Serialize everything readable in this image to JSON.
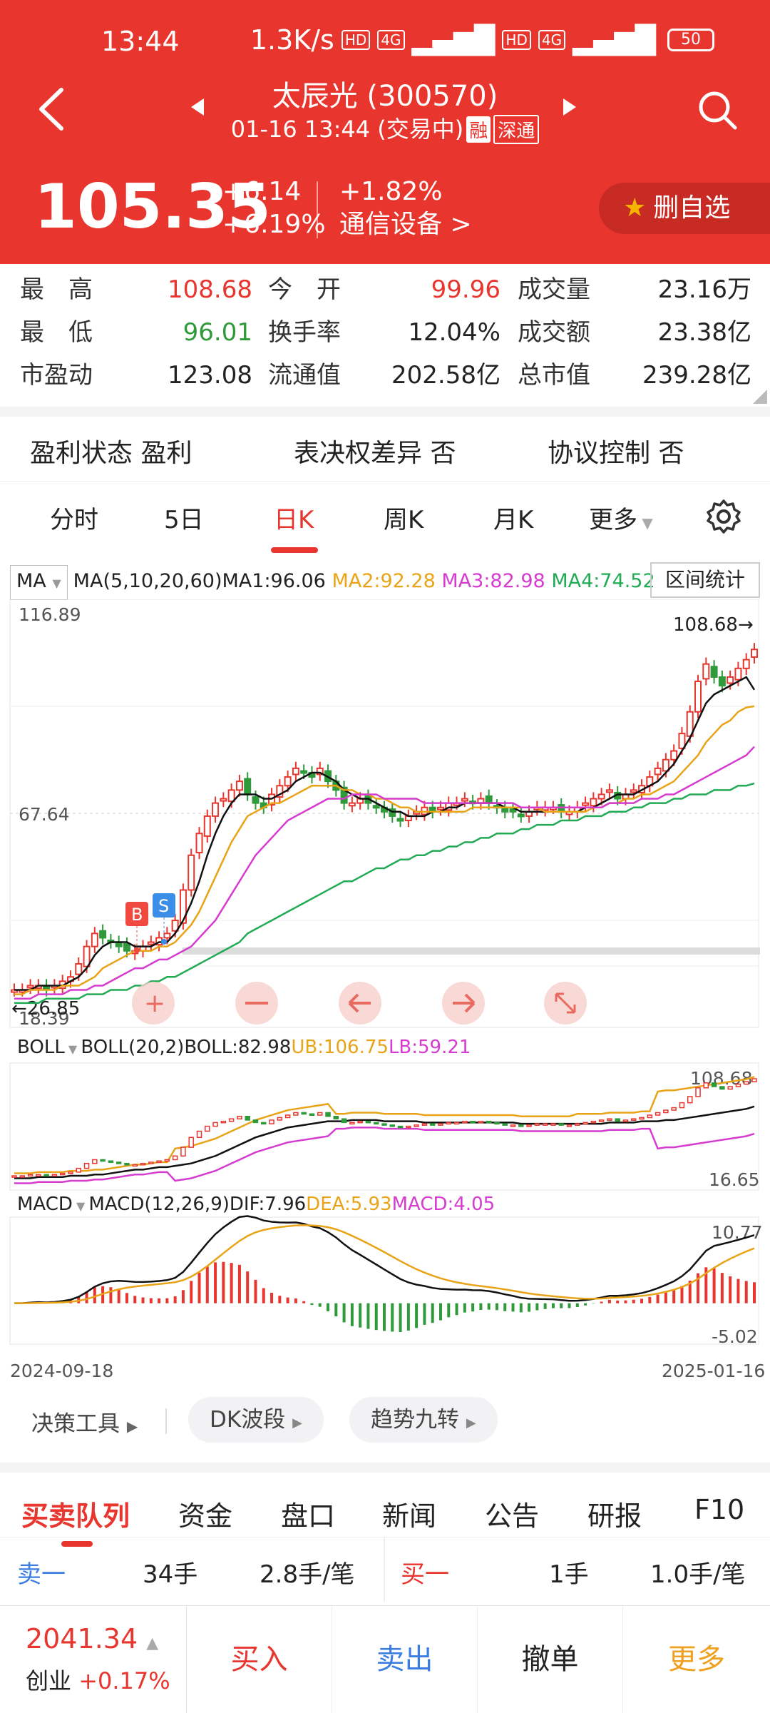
{
  "status": {
    "time": "13:44",
    "speed": "1.3K/s",
    "hd1": "HD",
    "net1": "4G",
    "hd2": "HD",
    "net2": "4G",
    "battery": "50"
  },
  "nav": {
    "title": "太辰光 (300570)",
    "subtitle": "01-16 13:44 (交易中)",
    "tag_rong": "融",
    "tag_shen": "深通"
  },
  "quote": {
    "price": "105.35",
    "change": "+6.14",
    "change_pct": "+6.19%",
    "sector_pct": "+1.82%",
    "sector": "通信设备 >",
    "fav_label": "删自选"
  },
  "stats": [
    {
      "label": "最　高",
      "value": "108.68",
      "color": "red"
    },
    {
      "label": "今　开",
      "value": "99.96",
      "color": "red"
    },
    {
      "label": "成交量",
      "value": "23.16万",
      "color": "black"
    },
    {
      "label": "最　低",
      "value": "96.01",
      "color": "green"
    },
    {
      "label": "换手率",
      "value": "12.04%",
      "color": "black"
    },
    {
      "label": "成交额",
      "value": "23.38亿",
      "color": "black"
    },
    {
      "label": "市盈动",
      "value": "123.08",
      "color": "black"
    },
    {
      "label": "流通值",
      "value": "202.58亿",
      "color": "black"
    },
    {
      "label": "总市值",
      "value": "239.28亿",
      "color": "black"
    }
  ],
  "attributes": [
    "盈利状态 盈利",
    "表决权差异 否",
    "协议控制 否"
  ],
  "period_tabs": [
    "分时",
    "5日",
    "日K",
    "周K",
    "月K",
    "更多"
  ],
  "active_period": "日K",
  "ma": {
    "selector": "MA",
    "params": "MA(5,10,20,60)",
    "ma1": "MA1:96.06",
    "ma2": "MA2:92.28",
    "ma3": "MA3:82.98",
    "ma4": "MA4:74.52",
    "range_stats": "区间统计"
  },
  "boll": {
    "selector": "BOLL",
    "params": "BOLL(20,2)",
    "mid": "BOLL:82.98",
    "ub": "UB:106.75",
    "lb": "LB:59.21"
  },
  "macd": {
    "selector": "MACD",
    "params": "MACD(12,26,9)",
    "dif": "DIF:7.96",
    "dea": "DEA:5.93",
    "macd": "MACD:4.05"
  },
  "colors": {
    "up": "#e8352e",
    "down": "#2e9a3a",
    "ma1": "#111111",
    "ma2": "#e8a317",
    "ma3": "#d63bd0",
    "ma4": "#22aa55"
  },
  "chart_data": [
    {
      "type": "candlestick",
      "title": "",
      "y_labels": {
        "top": "116.89",
        "mid": "67.64",
        "bottom": "18.39",
        "max_marker": "108.68",
        "min_marker": "26.85"
      },
      "ylim": [
        18.39,
        116.89
      ],
      "buy_marker": "B",
      "sell_marker": "S",
      "close_series": [
        27,
        27,
        28,
        28,
        27,
        28,
        29,
        30,
        33,
        37,
        40,
        39,
        38,
        37,
        36,
        36,
        37,
        38,
        39,
        40,
        43,
        50,
        58,
        63,
        67,
        70,
        71,
        73,
        75,
        72,
        70,
        69,
        72,
        74,
        76,
        78,
        77,
        76,
        78,
        75,
        73,
        70,
        70,
        71,
        70,
        69,
        68,
        67,
        66,
        67,
        68,
        69,
        68,
        69,
        70,
        70,
        71,
        70,
        71,
        70,
        69,
        68,
        68,
        67,
        68,
        69,
        69,
        69,
        68,
        68,
        69,
        70,
        71,
        72,
        73,
        71,
        72,
        73,
        74,
        76,
        78,
        80,
        82,
        86,
        91,
        98,
        102,
        99,
        97,
        99,
        101,
        103,
        105.35
      ],
      "ma_series": [
        {
          "name": "MA1",
          "values": [
            27,
            27,
            27,
            28,
            28,
            28,
            28,
            29,
            30,
            32,
            35,
            37,
            38,
            38,
            38,
            37,
            37,
            37,
            38,
            38,
            40,
            43,
            47,
            52,
            58,
            63,
            67,
            70,
            72,
            72,
            72,
            71,
            71,
            72,
            73,
            75,
            76,
            77,
            77,
            76,
            75,
            73,
            72,
            71,
            71,
            70,
            69,
            68,
            68,
            67,
            67,
            67,
            68,
            68,
            69,
            69,
            70,
            70,
            70,
            70,
            70,
            69,
            69,
            68,
            68,
            68,
            68,
            68,
            68,
            68,
            68,
            69,
            69,
            70,
            71,
            72,
            72,
            72,
            73,
            74,
            75,
            77,
            79,
            82,
            85,
            89,
            93,
            95,
            96,
            97,
            98,
            99,
            96.06
          ]
        },
        {
          "name": "MA2",
          "values": [
            26,
            26,
            27,
            27,
            27,
            27,
            28,
            28,
            28,
            29,
            30,
            32,
            33,
            34,
            35,
            36,
            36,
            36,
            37,
            37,
            38,
            40,
            42,
            45,
            49,
            53,
            57,
            61,
            64,
            67,
            68,
            69,
            70,
            70,
            71,
            72,
            73,
            74,
            74,
            74,
            74,
            73,
            73,
            72,
            72,
            71,
            71,
            70,
            69,
            69,
            68,
            68,
            68,
            68,
            68,
            68,
            68,
            69,
            69,
            69,
            69,
            69,
            69,
            69,
            69,
            69,
            68,
            68,
            68,
            68,
            68,
            68,
            69,
            69,
            70,
            70,
            71,
            71,
            72,
            72,
            73,
            74,
            75,
            77,
            79,
            81,
            84,
            86,
            88,
            89,
            91,
            92,
            92.28
          ]
        },
        {
          "name": "MA3",
          "values": [
            25,
            25,
            25,
            26,
            26,
            26,
            26,
            27,
            27,
            27,
            28,
            28,
            29,
            30,
            31,
            32,
            32,
            33,
            34,
            34,
            35,
            36,
            37,
            39,
            41,
            43,
            46,
            49,
            52,
            55,
            58,
            60,
            62,
            64,
            66,
            67,
            68,
            69,
            70,
            71,
            71,
            71,
            72,
            72,
            72,
            72,
            71,
            71,
            71,
            71,
            71,
            70,
            70,
            70,
            70,
            70,
            70,
            70,
            70,
            70,
            70,
            70,
            70,
            69,
            69,
            69,
            69,
            69,
            69,
            69,
            69,
            69,
            69,
            69,
            70,
            70,
            70,
            70,
            71,
            71,
            71,
            72,
            72,
            73,
            74,
            75,
            76,
            77,
            78,
            79,
            80,
            81,
            82.98
          ]
        },
        {
          "name": "MA4",
          "values": [
            24,
            24,
            24,
            24,
            25,
            25,
            25,
            25,
            25,
            26,
            26,
            26,
            27,
            27,
            27,
            28,
            28,
            29,
            29,
            30,
            30,
            31,
            32,
            33,
            34,
            35,
            36,
            37,
            38,
            40,
            41,
            42,
            43,
            44,
            45,
            46,
            47,
            48,
            49,
            50,
            51,
            52,
            52,
            53,
            54,
            55,
            55,
            56,
            57,
            57,
            58,
            58,
            59,
            59,
            60,
            60,
            61,
            61,
            62,
            62,
            63,
            63,
            63,
            64,
            64,
            65,
            65,
            65,
            66,
            66,
            66,
            67,
            67,
            67,
            68,
            68,
            68,
            69,
            69,
            70,
            70,
            70,
            71,
            71,
            72,
            72,
            72,
            73,
            73,
            73,
            74,
            74,
            74.52
          ]
        }
      ]
    },
    {
      "type": "line",
      "title": "",
      "y_labels": {
        "top": "108.68",
        "bottom": "16.65"
      },
      "ylim": [
        16.65,
        116.89
      ]
    },
    {
      "type": "bar",
      "title": "",
      "y_labels": {
        "top": "10.77",
        "bottom": "-5.02"
      },
      "ylim": [
        -5.02,
        10.77
      ],
      "dates": {
        "start": "2024-09-18",
        "end": "2025-01-16"
      }
    }
  ],
  "tools": [
    "决策工具",
    "DK波段",
    "趋势九转"
  ],
  "bottom_tabs": [
    "买卖队列",
    "资金",
    "盘口",
    "新闻",
    "公告",
    "研报",
    "F10"
  ],
  "orders": {
    "sell_label": "卖一",
    "sell_qty": "34手",
    "sell_avg": "2.8手/笔",
    "buy_label": "买一",
    "buy_qty": "1手",
    "buy_avg": "1.0手/笔"
  },
  "index": {
    "value": "2041.34",
    "name": "创业",
    "pct": "+0.17%"
  },
  "actions": {
    "buy": "买入",
    "sell": "卖出",
    "cancel": "撤单",
    "more": "更多"
  }
}
